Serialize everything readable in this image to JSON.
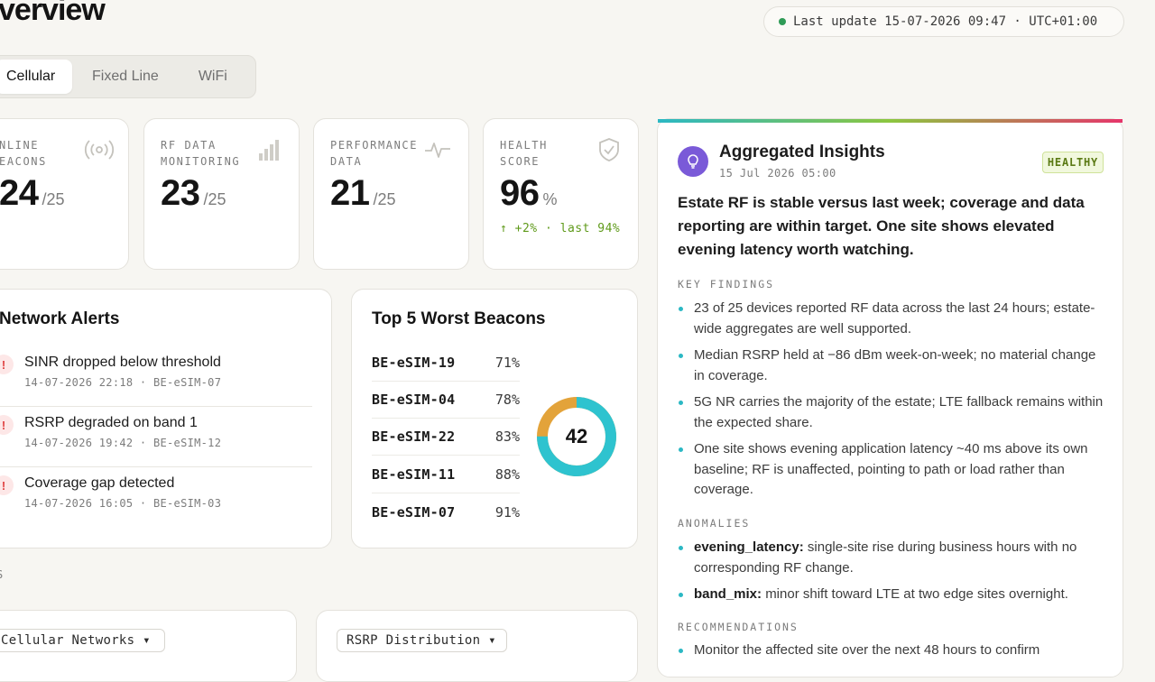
{
  "header": {
    "title": "verview",
    "last_update": "Last update 15-07-2026 09:47 · UTC+01:00"
  },
  "tabs": [
    {
      "label": "Cellular"
    },
    {
      "label": "Fixed Line"
    },
    {
      "label": "WiFi"
    }
  ],
  "stats": [
    {
      "label": "NLINE\nEACONS",
      "value": "24",
      "total": "/25",
      "icon": "broadcast-icon"
    },
    {
      "label": "RF DATA\nMONITORING",
      "value": "23",
      "total": "/25",
      "icon": "signal-bars-icon"
    },
    {
      "label": "PERFORMANCE\nDATA",
      "value": "21",
      "total": "/25",
      "icon": "pulse-icon"
    },
    {
      "label": "HEALTH\nSCORE",
      "value": "96",
      "total": "%",
      "trend": "↑ +2% · last 94%",
      "icon": "shield-check-icon"
    }
  ],
  "alerts": {
    "title": "Network Alerts",
    "items": [
      {
        "title": "SINR dropped below threshold",
        "meta": "14-07-2026 22:18 · BE-eSIM-07"
      },
      {
        "title": "RSRP degraded on band 1",
        "meta": "14-07-2026 19:42 · BE-eSIM-12"
      },
      {
        "title": "Coverage gap detected",
        "meta": "14-07-2026 16:05 · BE-eSIM-03"
      }
    ]
  },
  "worst_beacons": {
    "title": "Top 5 Worst Beacons",
    "rows": [
      {
        "name": "BE-eSIM-19",
        "pct": "71%"
      },
      {
        "name": "BE-eSIM-04",
        "pct": "78%"
      },
      {
        "name": "BE-eSIM-22",
        "pct": "83%"
      },
      {
        "name": "BE-eSIM-11",
        "pct": "88%"
      },
      {
        "name": "BE-eSIM-07",
        "pct": "91%"
      }
    ],
    "donut_value": "42",
    "donut_fraction": 0.75,
    "colors": {
      "primary": "#2ec3cf",
      "secondary": "#e3a33a"
    }
  },
  "insights": {
    "title": "Aggregated Insights",
    "time": "15 Jul 2026 05:00",
    "badge": "HEALTHY",
    "summary": "Estate RF is stable versus last week; coverage and data reporting are within target. One site shows elevated evening latency worth watching.",
    "key_findings_label": "KEY FINDINGS",
    "key_findings": [
      "23 of 25 devices reported RF data across the last 24 hours; estate-wide aggregates are well supported.",
      "Median RSRP held at −86 dBm week-on-week; no material change in coverage.",
      "5G NR carries the majority of the estate; LTE fallback remains within the expected share.",
      "One site shows evening application latency ~40 ms above its own baseline; RF is unaffected, pointing to path or load rather than coverage."
    ],
    "anomalies_label": "ANOMALIES",
    "anomalies": [
      {
        "key": "evening_latency:",
        "text": "single-site rise during business hours with no corresponding RF change."
      },
      {
        "key": "band_mix:",
        "text": "minor shift toward LTE at two edge sites overnight."
      }
    ],
    "recommendations_label": "RECOMMENDATIONS",
    "recommendations": [
      "Monitor the affected site over the next 48 hours to confirm"
    ],
    "accent": "#2bb8c4"
  },
  "bottom": {
    "section_label": "S",
    "dropdown_1": "Cellular Networks ▾",
    "dropdown_2": "RSRP Distribution ▾"
  }
}
